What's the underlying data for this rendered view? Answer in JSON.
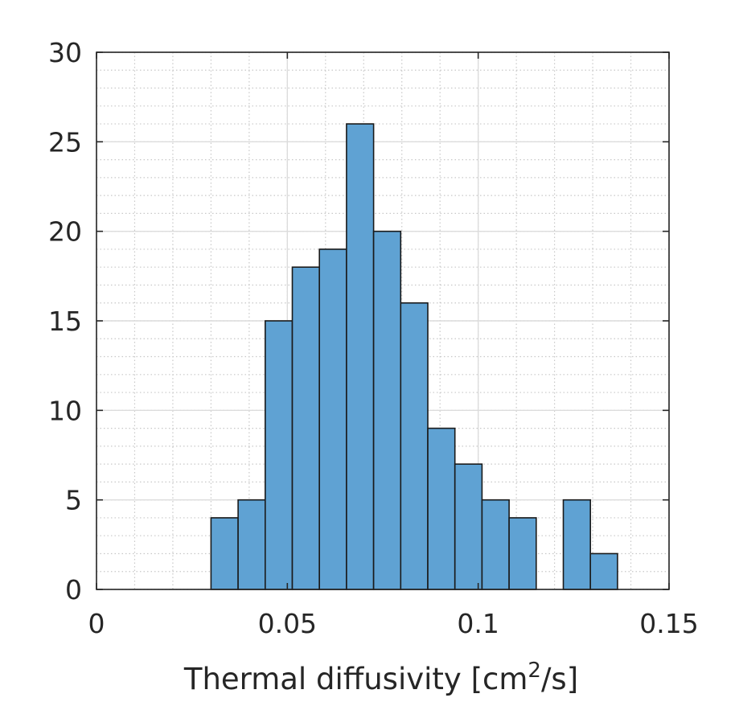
{
  "chart_data": {
    "type": "bar",
    "subtype": "histogram",
    "title": "",
    "xlabel": "Thermal diffusivity [cm",
    "xlabel_superscript": "2",
    "xlabel_suffix": "/s]",
    "ylabel": "",
    "xlim": [
      0,
      0.15
    ],
    "ylim": [
      0,
      30
    ],
    "xticks": [
      0,
      0.05,
      0.1,
      0.15
    ],
    "xtick_labels": [
      "0",
      "0.05",
      "0.1",
      "0.15"
    ],
    "yticks": [
      0,
      5,
      10,
      15,
      20,
      25,
      30
    ],
    "ytick_labels": [
      "0",
      "5",
      "10",
      "15",
      "20",
      "25",
      "30"
    ],
    "grid": true,
    "minor_grid": true,
    "bin_edges": [
      0.03,
      0.0371,
      0.0442,
      0.0513,
      0.0584,
      0.0655,
      0.0726,
      0.0797,
      0.0868,
      0.0939,
      0.101,
      0.1081,
      0.1152,
      0.1223,
      0.1294,
      0.1365
    ],
    "values": [
      4,
      5,
      15,
      18,
      19,
      26,
      20,
      16,
      9,
      7,
      5,
      4,
      0,
      5,
      2
    ],
    "colors": {
      "bar_fill": "#5fa2d3",
      "bar_edge": "#1a1a1a",
      "axis": "#262626",
      "major_grid": "#dcdcdc",
      "minor_grid": "#c8c8c8"
    }
  }
}
